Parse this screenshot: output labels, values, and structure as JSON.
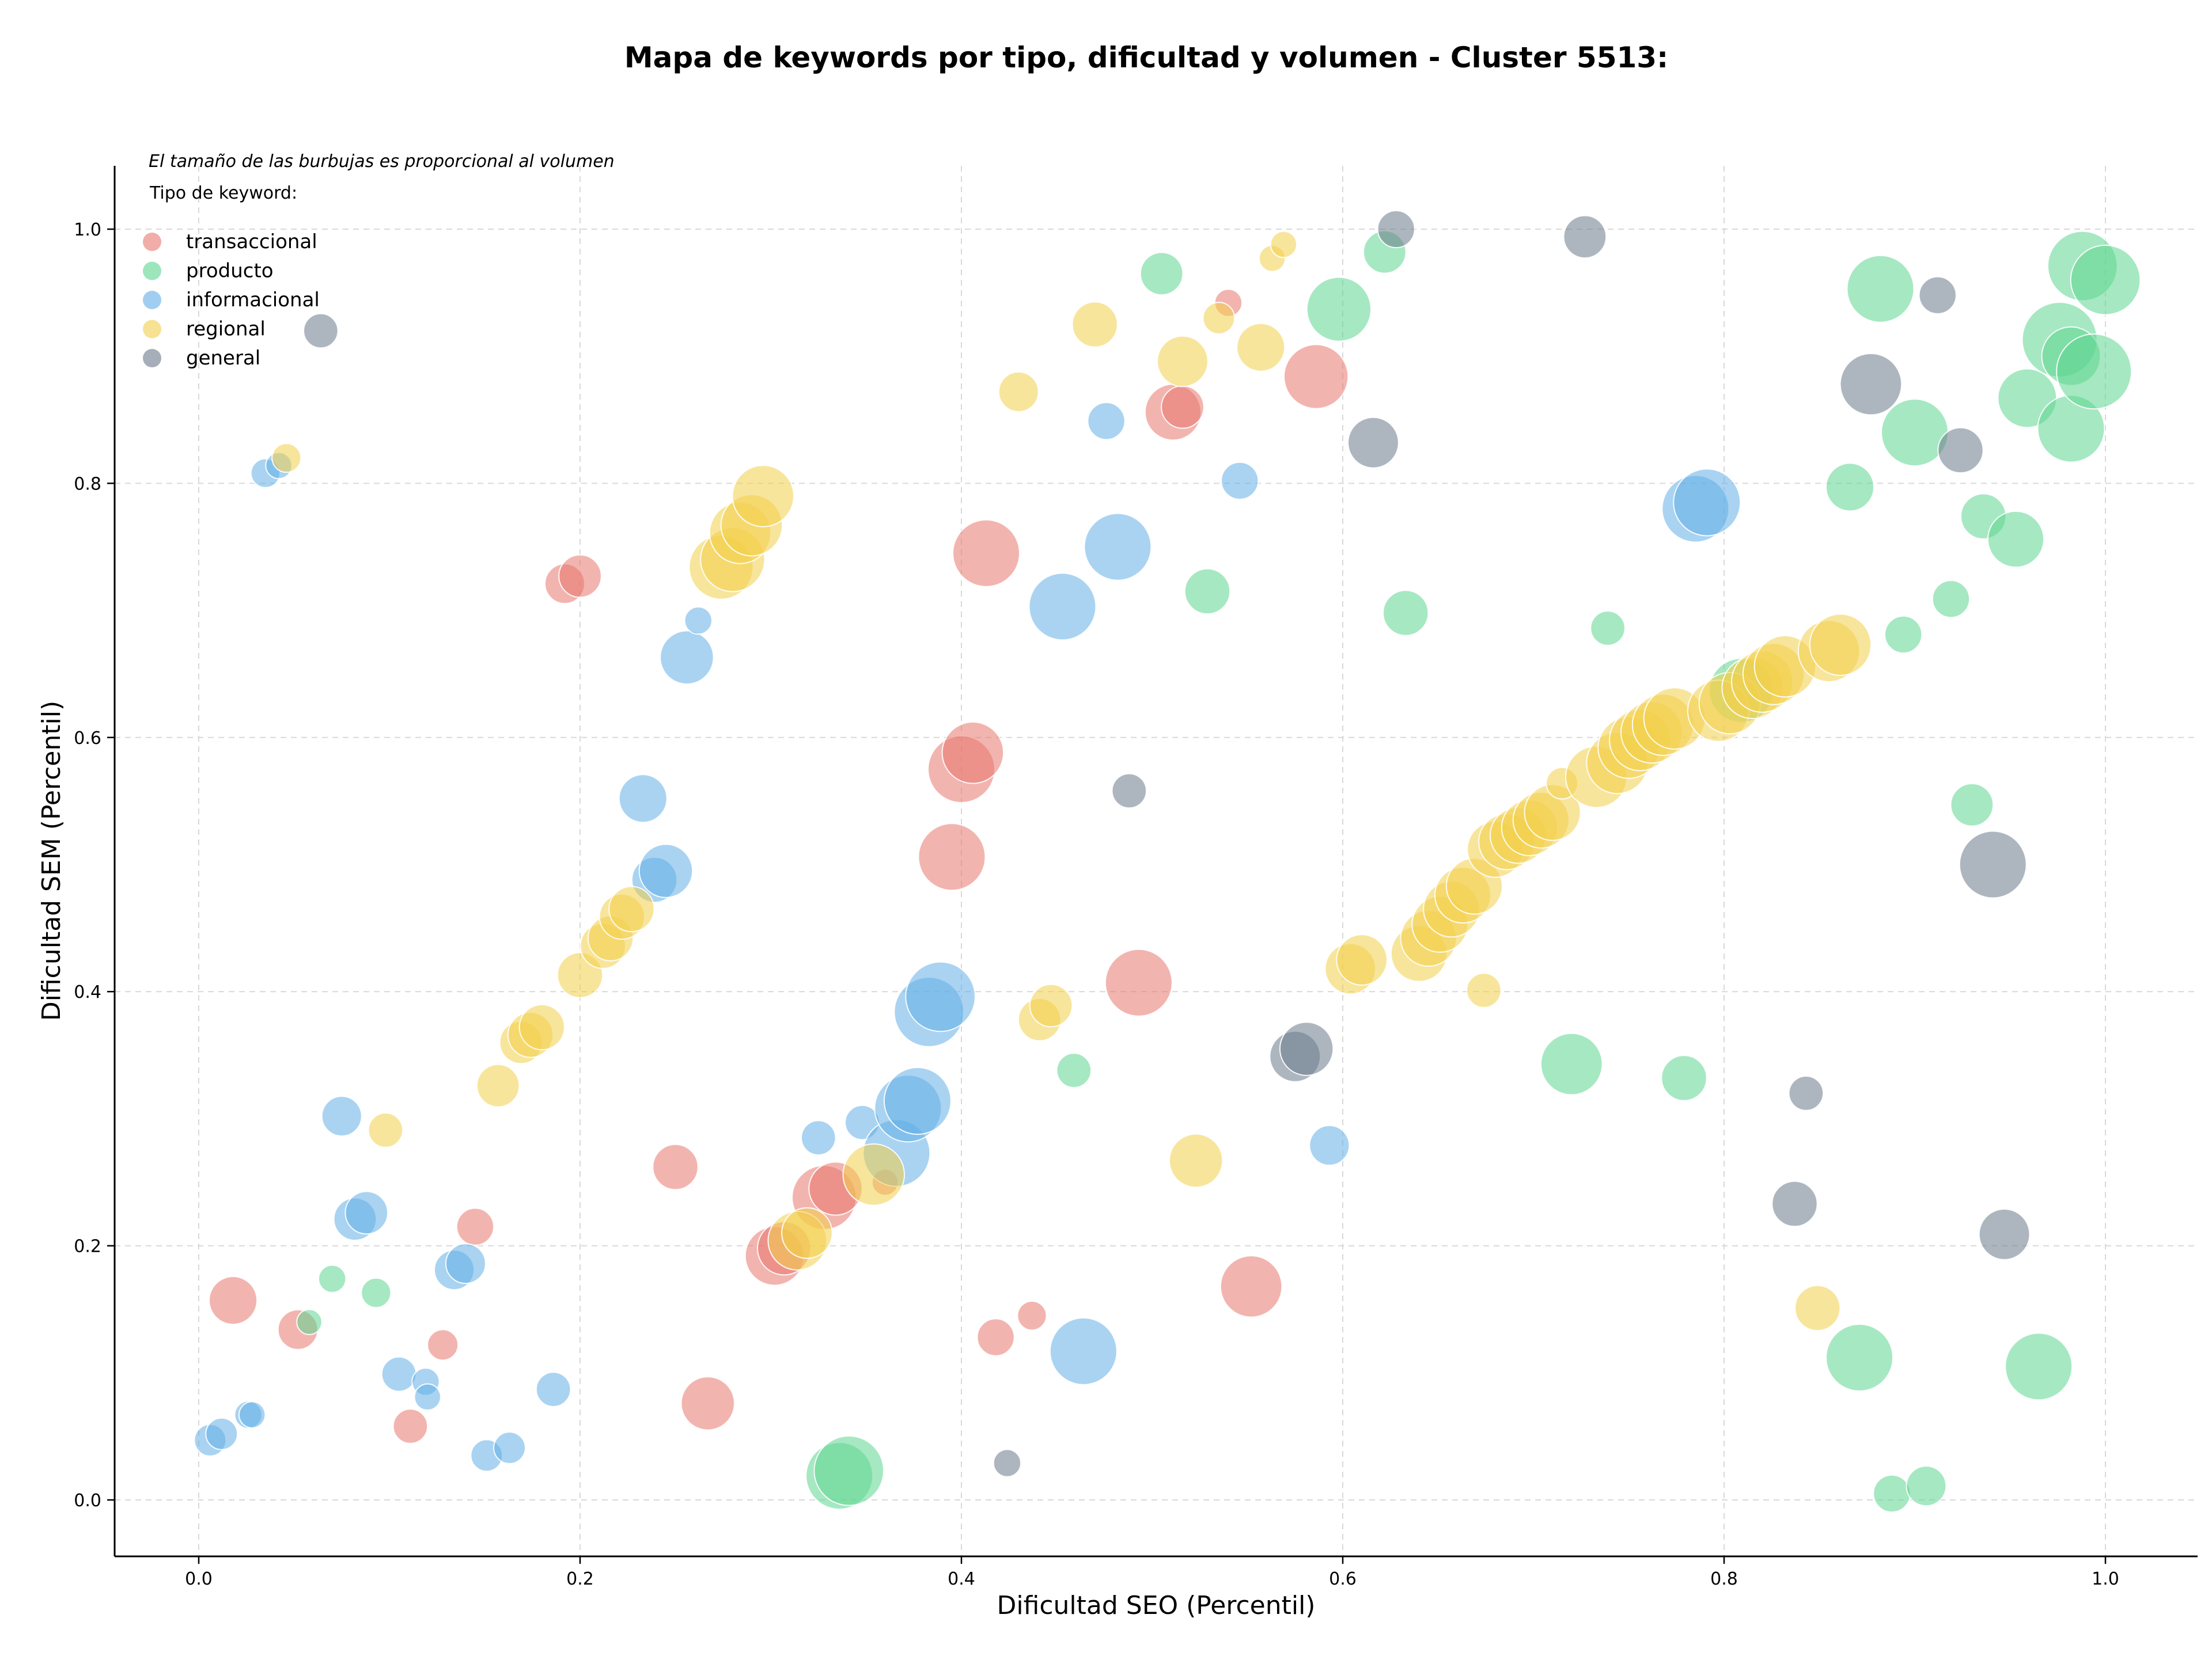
{
  "chart_data": {
    "type": "scatter",
    "title": "Mapa de keywords por tipo, dificultad y volumen - Cluster 5513:",
    "xlabel": "Dificultad SEO (Percentil)",
    "ylabel": "Dificultad SEM (Percentil)",
    "xlim": [
      -0.045,
      1.05
    ],
    "ylim": [
      -0.045,
      1.05
    ],
    "x_ticks": [
      "0.0",
      "0.2",
      "0.4",
      "0.6",
      "0.8",
      "1.0"
    ],
    "y_ticks": [
      "0.0",
      "0.2",
      "0.4",
      "0.6",
      "0.8",
      "1.0"
    ],
    "grid": true,
    "note": "El tamaño de las burbujas es proporcional al volumen",
    "legend_title": "Tipo de keyword:",
    "legend_position": "top-left",
    "series": [
      {
        "name": "transaccional",
        "color": "#e8776e",
        "points": [
          [
            0.018,
            0.157,
            0.5
          ],
          [
            0.052,
            0.134,
            0.35
          ],
          [
            0.111,
            0.058,
            0.25
          ],
          [
            0.128,
            0.122,
            0.18
          ],
          [
            0.145,
            0.215,
            0.3
          ],
          [
            0.192,
            0.721,
            0.35
          ],
          [
            0.2,
            0.727,
            0.4
          ],
          [
            0.25,
            0.262,
            0.45
          ],
          [
            0.267,
            0.076,
            0.6
          ],
          [
            0.302,
            0.192,
            0.7
          ],
          [
            0.307,
            0.198,
            0.6
          ],
          [
            0.328,
            0.238,
            0.8
          ],
          [
            0.334,
            0.245,
            0.6
          ],
          [
            0.36,
            0.25,
            0.1
          ],
          [
            0.395,
            0.506,
            0.85
          ],
          [
            0.4,
            0.575,
            0.85
          ],
          [
            0.406,
            0.588,
            0.75
          ],
          [
            0.413,
            0.745,
            0.85
          ],
          [
            0.418,
            0.128,
            0.3
          ],
          [
            0.437,
            0.145,
            0.15
          ],
          [
            0.493,
            0.407,
            0.85
          ],
          [
            0.511,
            0.856,
            0.65
          ],
          [
            0.516,
            0.86,
            0.4
          ],
          [
            0.54,
            0.942,
            0.12
          ],
          [
            0.552,
            0.168,
            0.75
          ],
          [
            0.586,
            0.884,
            0.8
          ]
        ]
      },
      {
        "name": "producto",
        "color": "#5cd690",
        "points": [
          [
            0.058,
            0.14,
            0.08
          ],
          [
            0.07,
            0.174,
            0.12
          ],
          [
            0.093,
            0.163,
            0.16
          ],
          [
            0.336,
            0.019,
            0.85
          ],
          [
            0.341,
            0.023,
            0.9
          ],
          [
            0.459,
            0.338,
            0.25
          ],
          [
            0.505,
            0.965,
            0.4
          ],
          [
            0.529,
            0.715,
            0.45
          ],
          [
            0.598,
            0.937,
            0.8
          ],
          [
            0.622,
            0.982,
            0.4
          ],
          [
            0.633,
            0.698,
            0.45
          ],
          [
            0.72,
            0.343,
            0.75
          ],
          [
            0.739,
            0.686,
            0.25
          ],
          [
            0.779,
            0.332,
            0.45
          ],
          [
            0.809,
            0.637,
            0.8
          ],
          [
            0.866,
            0.797,
            0.5
          ],
          [
            0.871,
            0.112,
            0.85
          ],
          [
            0.882,
            0.953,
            0.85
          ],
          [
            0.888,
            0.005,
            0.3
          ],
          [
            0.894,
            0.681,
            0.3
          ],
          [
            0.9,
            0.84,
            0.85
          ],
          [
            0.906,
            0.011,
            0.35
          ],
          [
            0.919,
            0.709,
            0.3
          ],
          [
            0.93,
            0.547,
            0.4
          ],
          [
            0.936,
            0.774,
            0.45
          ],
          [
            0.953,
            0.756,
            0.65
          ],
          [
            0.959,
            0.867,
            0.7
          ],
          [
            0.965,
            0.105,
            0.85
          ],
          [
            0.976,
            0.913,
            1.0
          ],
          [
            0.982,
            0.843,
            0.85
          ],
          [
            0.982,
            0.9,
            0.7
          ],
          [
            0.988,
            0.971,
            0.9
          ],
          [
            0.994,
            0.888,
            1.0
          ],
          [
            1.0,
            0.96,
            0.9
          ]
        ]
      },
      {
        "name": "informacional",
        "color": "#62aee6",
        "points": [
          [
            0.006,
            0.047,
            0.2
          ],
          [
            0.012,
            0.052,
            0.2
          ],
          [
            0.026,
            0.067,
            0.12
          ],
          [
            0.028,
            0.067,
            0.1
          ],
          [
            0.035,
            0.808,
            0.15
          ],
          [
            0.042,
            0.814,
            0.1
          ],
          [
            0.075,
            0.302,
            0.35
          ],
          [
            0.082,
            0.221,
            0.4
          ],
          [
            0.088,
            0.226,
            0.4
          ],
          [
            0.105,
            0.099,
            0.25
          ],
          [
            0.119,
            0.093,
            0.12
          ],
          [
            0.12,
            0.081,
            0.1
          ],
          [
            0.134,
            0.181,
            0.35
          ],
          [
            0.14,
            0.186,
            0.35
          ],
          [
            0.151,
            0.035,
            0.2
          ],
          [
            0.163,
            0.041,
            0.2
          ],
          [
            0.186,
            0.087,
            0.25
          ],
          [
            0.233,
            0.552,
            0.5
          ],
          [
            0.239,
            0.488,
            0.45
          ],
          [
            0.245,
            0.495,
            0.6
          ],
          [
            0.256,
            0.663,
            0.6
          ],
          [
            0.262,
            0.692,
            0.12
          ],
          [
            0.325,
            0.285,
            0.25
          ],
          [
            0.348,
            0.297,
            0.25
          ],
          [
            0.366,
            0.273,
            0.85
          ],
          [
            0.372,
            0.308,
            0.85
          ],
          [
            0.377,
            0.314,
            0.85
          ],
          [
            0.383,
            0.384,
            0.9
          ],
          [
            0.389,
            0.396,
            0.9
          ],
          [
            0.453,
            0.703,
            0.85
          ],
          [
            0.464,
            0.117,
            0.85
          ],
          [
            0.476,
            0.849,
            0.3
          ],
          [
            0.482,
            0.75,
            0.85
          ],
          [
            0.546,
            0.802,
            0.3
          ],
          [
            0.593,
            0.279,
            0.35
          ],
          [
            0.785,
            0.78,
            0.85
          ],
          [
            0.791,
            0.785,
            0.85
          ]
        ]
      },
      {
        "name": "regional",
        "color": "#f2cf4b",
        "points": [
          [
            0.046,
            0.82,
            0.15
          ],
          [
            0.098,
            0.291,
            0.25
          ],
          [
            0.157,
            0.326,
            0.4
          ],
          [
            0.169,
            0.36,
            0.4
          ],
          [
            0.174,
            0.366,
            0.45
          ],
          [
            0.18,
            0.372,
            0.45
          ],
          [
            0.2,
            0.413,
            0.45
          ],
          [
            0.212,
            0.436,
            0.45
          ],
          [
            0.216,
            0.442,
            0.45
          ],
          [
            0.222,
            0.459,
            0.45
          ],
          [
            0.227,
            0.465,
            0.45
          ],
          [
            0.274,
            0.734,
            0.8
          ],
          [
            0.28,
            0.74,
            0.8
          ],
          [
            0.284,
            0.761,
            0.75
          ],
          [
            0.29,
            0.767,
            0.75
          ],
          [
            0.296,
            0.79,
            0.75
          ],
          [
            0.314,
            0.204,
            0.7
          ],
          [
            0.319,
            0.21,
            0.55
          ],
          [
            0.354,
            0.256,
            0.75
          ],
          [
            0.43,
            0.872,
            0.35
          ],
          [
            0.441,
            0.378,
            0.4
          ],
          [
            0.447,
            0.389,
            0.4
          ],
          [
            0.47,
            0.925,
            0.45
          ],
          [
            0.516,
            0.896,
            0.55
          ],
          [
            0.523,
            0.267,
            0.6
          ],
          [
            0.535,
            0.93,
            0.2
          ],
          [
            0.557,
            0.907,
            0.5
          ],
          [
            0.563,
            0.977,
            0.1
          ],
          [
            0.569,
            0.988,
            0.1
          ],
          [
            0.604,
            0.418,
            0.55
          ],
          [
            0.61,
            0.425,
            0.55
          ],
          [
            0.64,
            0.43,
            0.65
          ],
          [
            0.645,
            0.442,
            0.65
          ],
          [
            0.651,
            0.453,
            0.65
          ],
          [
            0.657,
            0.465,
            0.65
          ],
          [
            0.663,
            0.476,
            0.65
          ],
          [
            0.669,
            0.483,
            0.65
          ],
          [
            0.674,
            0.401,
            0.25
          ],
          [
            0.68,
            0.512,
            0.65
          ],
          [
            0.686,
            0.518,
            0.65
          ],
          [
            0.692,
            0.523,
            0.65
          ],
          [
            0.698,
            0.529,
            0.65
          ],
          [
            0.704,
            0.535,
            0.65
          ],
          [
            0.71,
            0.541,
            0.65
          ],
          [
            0.715,
            0.564,
            0.2
          ],
          [
            0.733,
            0.569,
            0.75
          ],
          [
            0.744,
            0.58,
            0.75
          ],
          [
            0.75,
            0.592,
            0.75
          ],
          [
            0.756,
            0.598,
            0.75
          ],
          [
            0.762,
            0.604,
            0.75
          ],
          [
            0.768,
            0.61,
            0.75
          ],
          [
            0.774,
            0.615,
            0.75
          ],
          [
            0.797,
            0.621,
            0.75
          ],
          [
            0.803,
            0.627,
            0.75
          ],
          [
            0.815,
            0.639,
            0.75
          ],
          [
            0.82,
            0.644,
            0.75
          ],
          [
            0.826,
            0.65,
            0.75
          ],
          [
            0.832,
            0.656,
            0.75
          ],
          [
            0.849,
            0.151,
            0.45
          ],
          [
            0.855,
            0.668,
            0.75
          ],
          [
            0.861,
            0.673,
            0.75
          ]
        ]
      },
      {
        "name": "general",
        "color": "#6a7a8a",
        "points": [
          [
            0.064,
            0.92,
            0.25
          ],
          [
            0.424,
            0.029,
            0.12
          ],
          [
            0.488,
            0.558,
            0.25
          ],
          [
            0.575,
            0.349,
            0.55
          ],
          [
            0.581,
            0.355,
            0.6
          ],
          [
            0.616,
            0.832,
            0.55
          ],
          [
            0.628,
            1.0,
            0.3
          ],
          [
            0.727,
            0.994,
            0.4
          ],
          [
            0.837,
            0.233,
            0.45
          ],
          [
            0.843,
            0.32,
            0.25
          ],
          [
            0.877,
            0.878,
            0.75
          ],
          [
            0.912,
            0.948,
            0.3
          ],
          [
            0.924,
            0.826,
            0.45
          ],
          [
            0.941,
            0.5,
            0.85
          ],
          [
            0.947,
            0.209,
            0.55
          ]
        ]
      }
    ]
  }
}
